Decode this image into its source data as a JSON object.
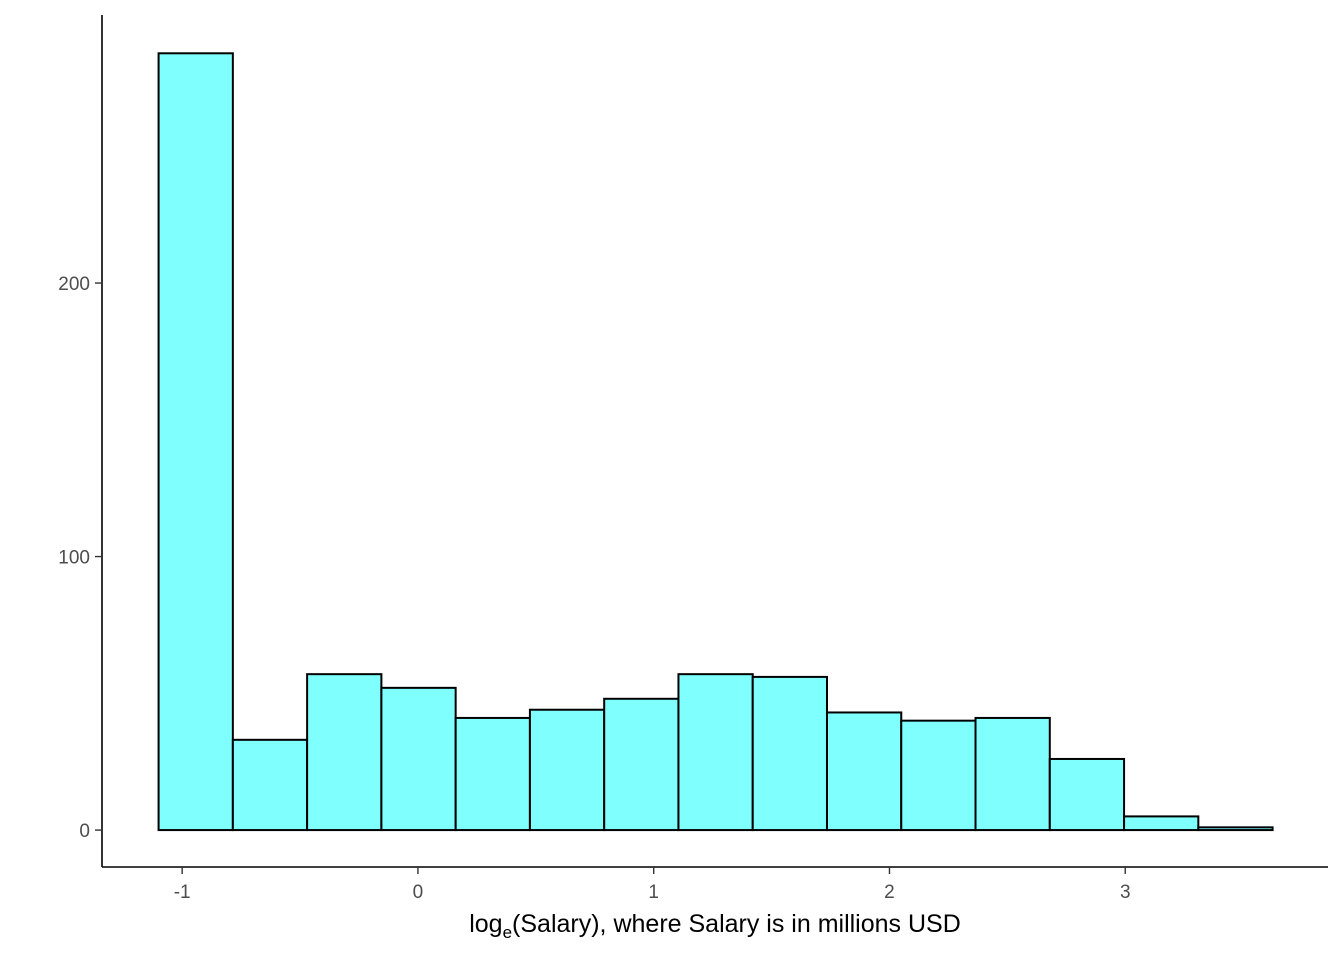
{
  "chart_data": {
    "type": "bar",
    "title": "",
    "xlabel": {
      "prefix": "log",
      "subscript": "e",
      "suffix": "(Salary), where Salary is in millions USD"
    },
    "ylabel": "",
    "bin_width": 0.315,
    "x_bins": [
      [
        -1.1,
        -0.785
      ],
      [
        -0.785,
        -0.47
      ],
      [
        -0.47,
        -0.155
      ],
      [
        -0.155,
        0.16
      ],
      [
        0.16,
        0.475
      ],
      [
        0.475,
        0.79
      ],
      [
        0.79,
        1.105
      ],
      [
        1.105,
        1.42
      ],
      [
        1.42,
        1.735
      ],
      [
        1.735,
        2.05
      ],
      [
        2.05,
        2.365
      ],
      [
        2.365,
        2.68
      ],
      [
        2.68,
        2.995
      ],
      [
        2.995,
        3.31
      ],
      [
        3.31,
        3.625
      ]
    ],
    "values": [
      284,
      33,
      57,
      52,
      41,
      44,
      48,
      57,
      56,
      43,
      40,
      41,
      26,
      5,
      1
    ],
    "xlim": [
      -1.34,
      3.86
    ],
    "ylim": [
      -13.5,
      298
    ],
    "x_ticks": [
      {
        "value": -1,
        "label": "-1"
      },
      {
        "value": 0,
        "label": "0"
      },
      {
        "value": 1,
        "label": "1"
      },
      {
        "value": 2,
        "label": "2"
      },
      {
        "value": 3,
        "label": "3"
      }
    ],
    "y_ticks": [
      {
        "value": 0,
        "label": "0"
      },
      {
        "value": 100,
        "label": "100"
      },
      {
        "value": 200,
        "label": "200"
      }
    ],
    "bar_fill": "#80ffff",
    "bar_stroke": "#000000",
    "grid": false,
    "legend": "none"
  }
}
